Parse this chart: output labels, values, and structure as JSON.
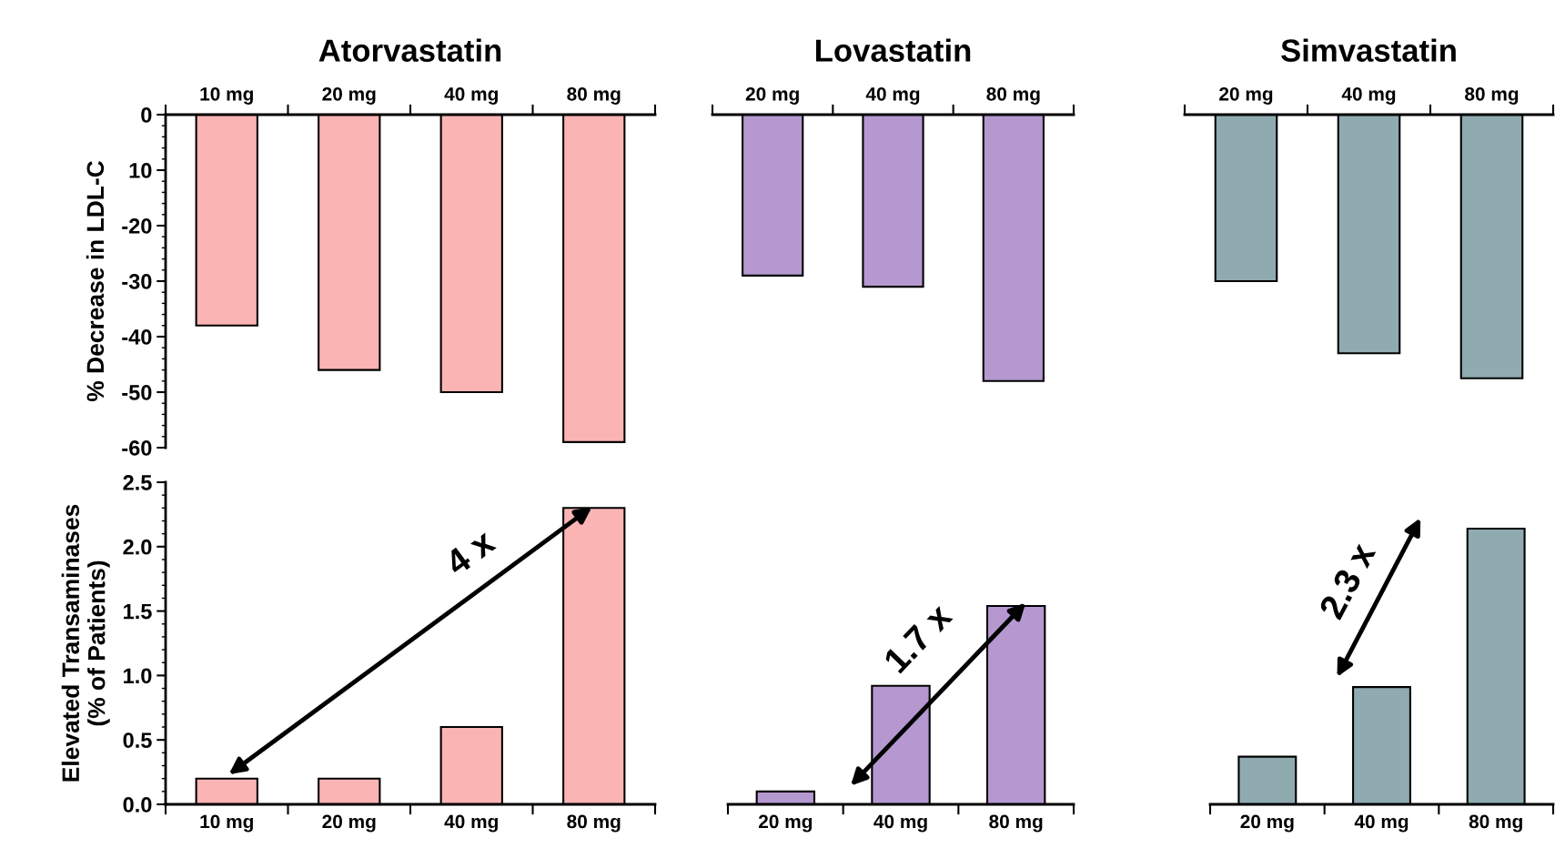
{
  "chart_data": [
    {
      "type": "bar",
      "title": "Atorvastatin",
      "ylabel": "% Decrease in LDL-C",
      "categories": [
        "10 mg",
        "20 mg",
        "40 mg",
        "80 mg"
      ],
      "values": [
        -38,
        -46,
        -50,
        -59
      ],
      "color": "#fbb4b4",
      "ylim": [
        -60,
        0
      ],
      "yticks": [
        0,
        {
          "value": -10,
          "label": "10"
        },
        -20,
        -30,
        -40,
        -50,
        -60
      ],
      "grid": false
    },
    {
      "type": "bar",
      "title": "Lovastatin",
      "categories": [
        "20 mg",
        "40 mg",
        "80 mg"
      ],
      "values": [
        -29,
        -31,
        -48
      ],
      "color": "#b598cf",
      "ylim": [
        -60,
        0
      ],
      "tick_labels": "x",
      "grid": false
    },
    {
      "type": "bar",
      "title": "Simvastatin",
      "categories": [
        "20 mg",
        "40 mg",
        "80 mg"
      ],
      "values": [
        -30,
        -43,
        -47.5
      ],
      "color": "#8fabb0",
      "ylim": [
        -60,
        0
      ],
      "tick_labels": "x",
      "grid": false
    },
    {
      "type": "bar",
      "ylabel": "Elevated Transaminases\n(% of Patients)",
      "categories": [
        "10 mg",
        "20 mg",
        "40 mg",
        "80 mg"
      ],
      "values": [
        0.2,
        0.2,
        0.6,
        2.3
      ],
      "color": "#fbb4b4",
      "ylim": [
        0,
        2.5
      ],
      "yticks": [
        {
          "value": 0,
          "label": "0.0"
        },
        0.5,
        {
          "value": 1,
          "label": "1.0"
        },
        1.5,
        {
          "value": 2,
          "label": "2.0"
        },
        2.5
      ],
      "annotations": [
        "4 x"
      ],
      "grid": false
    },
    {
      "type": "bar",
      "categories": [
        "20 mg",
        "40 mg",
        "80 mg"
      ],
      "values": [
        0.1,
        0.92,
        1.54
      ],
      "color": "#b598cf",
      "ylim": [
        0,
        2.5
      ],
      "tick_labels": "x",
      "annotations": [
        "1.7 x"
      ],
      "grid": false
    },
    {
      "type": "bar",
      "categories": [
        "20 mg",
        "40 mg",
        "80 mg"
      ],
      "values": [
        0.37,
        0.91,
        2.14
      ],
      "color": "#8fabb0",
      "ylim": [
        0,
        2.5
      ],
      "tick_labels": "x",
      "annotations": [
        "2.3 x"
      ],
      "grid": false
    }
  ]
}
